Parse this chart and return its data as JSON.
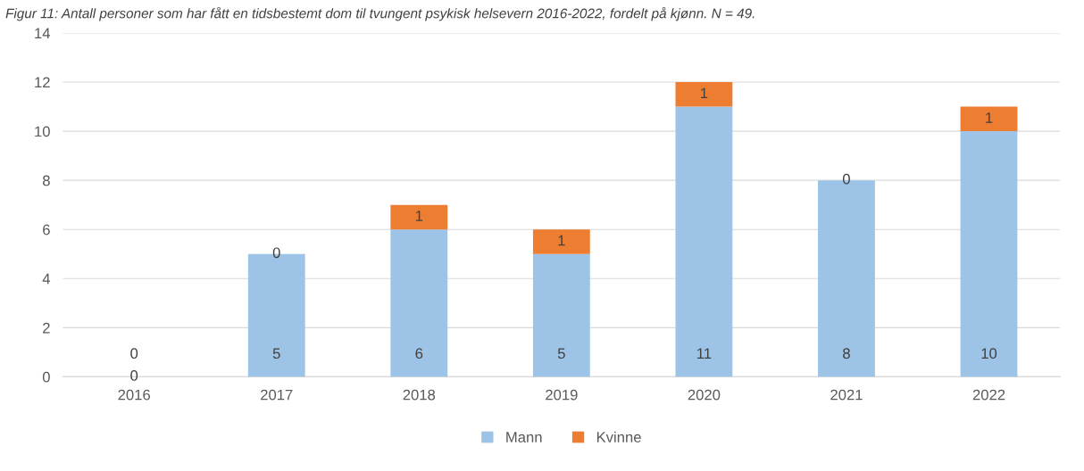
{
  "chart_data": {
    "type": "bar",
    "title": "Figur 11: Antall personer som har fått en tidsbestemt dom til tvungent psykisk helsevern 2016-2022, fordelt på kjønn. N = 49.",
    "categories": [
      "2016",
      "2017",
      "2018",
      "2019",
      "2020",
      "2021",
      "2022"
    ],
    "series": [
      {
        "name": "Mann",
        "color": "#9dc3e6",
        "values": [
          0,
          5,
          6,
          5,
          11,
          8,
          10
        ]
      },
      {
        "name": "Kvinne",
        "color": "#ed7d31",
        "values": [
          0,
          0,
          1,
          1,
          1,
          0,
          1
        ]
      }
    ],
    "stacked": true,
    "ylim": [
      0,
      14
    ],
    "yticks": [
      0,
      2,
      4,
      6,
      8,
      10,
      12,
      14
    ],
    "grid": "y",
    "legend": "bottom",
    "data_labels": true
  }
}
